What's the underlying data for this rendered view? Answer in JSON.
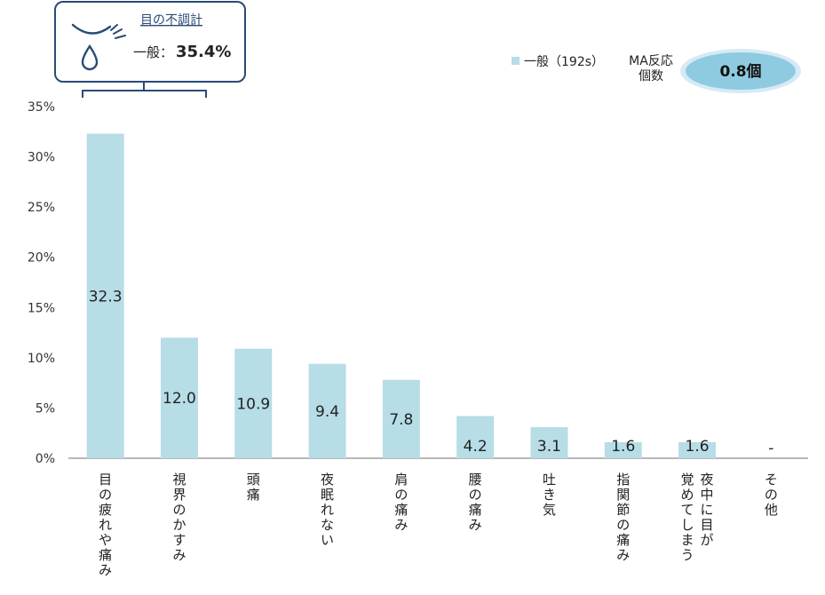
{
  "callout": {
    "title": "目の不調計",
    "label": "一般：",
    "value": "35.4%"
  },
  "legend": {
    "series_label": "一般（192s）",
    "color": "#b7dde7"
  },
  "ma": {
    "label_line1": "MA反応",
    "label_line2": "個数",
    "value": "0.8個"
  },
  "chart_data": {
    "type": "bar",
    "categories": [
      [
        "目の疲れや痛み"
      ],
      [
        "視界のかすみ"
      ],
      [
        "頭痛"
      ],
      [
        "夜眠れない"
      ],
      [
        "肩の痛み"
      ],
      [
        "腰の痛み"
      ],
      [
        "吐き気"
      ],
      [
        "指関節の痛み"
      ],
      [
        "夜中に目が",
        "覚めてしまう"
      ],
      [
        "その他"
      ]
    ],
    "series": [
      {
        "name": "一般（192s）",
        "values": [
          32.3,
          12.0,
          10.9,
          9.4,
          7.8,
          4.2,
          3.1,
          1.6,
          1.6,
          0
        ]
      }
    ],
    "value_labels": [
      "32.3",
      "12.0",
      "10.9",
      "9.4",
      "7.8",
      "4.2",
      "3.1",
      "1.6",
      "1.6",
      "-"
    ],
    "y_ticks": [
      "0%",
      "5%",
      "10%",
      "15%",
      "20%",
      "25%",
      "30%",
      "35%"
    ],
    "ylim": [
      0,
      35
    ],
    "bar_color": "#b7dde7",
    "grid": false
  }
}
